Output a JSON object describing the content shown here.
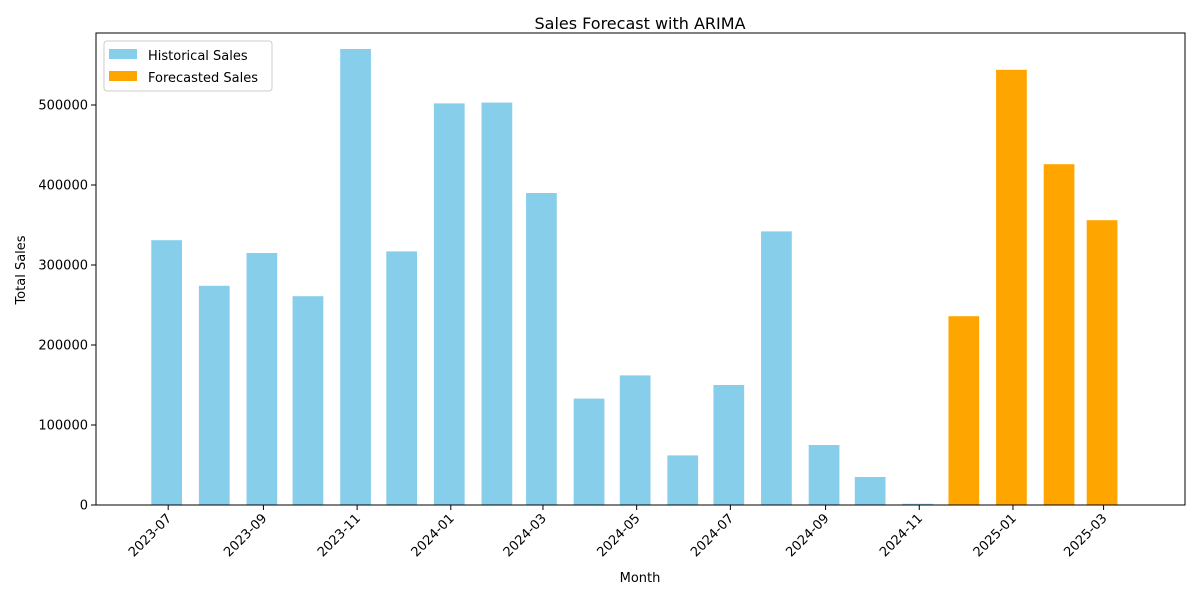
{
  "chart_data": {
    "type": "bar",
    "title": "Sales Forecast with ARIMA",
    "xlabel": "Month",
    "ylabel": "Total Sales",
    "ylim": [
      0,
      590000
    ],
    "yticks": [
      0,
      100000,
      200000,
      300000,
      400000,
      500000
    ],
    "xlim": [
      "2023-05-15",
      "2025-04-23"
    ],
    "xticks": [
      "2023-07",
      "2023-09",
      "2023-11",
      "2024-01",
      "2024-03",
      "2024-05",
      "2024-07",
      "2024-09",
      "2024-11",
      "2025-01",
      "2025-03"
    ],
    "grid": false,
    "legend_position": "top-left",
    "series": [
      {
        "name": "Historical Sales",
        "color": "#87CEEB",
        "dates": [
          "2023-06-30",
          "2023-07-31",
          "2023-08-31",
          "2023-09-30",
          "2023-10-31",
          "2023-11-30",
          "2023-12-31",
          "2024-01-31",
          "2024-02-29",
          "2024-03-31",
          "2024-04-30",
          "2024-05-31",
          "2024-06-30",
          "2024-07-31",
          "2024-08-31",
          "2024-09-30",
          "2024-10-31"
        ],
        "values": [
          331000,
          274000,
          315000,
          261000,
          570000,
          317000,
          502000,
          503000,
          390000,
          133000,
          162000,
          62000,
          150000,
          342000,
          75000,
          35000,
          1500
        ]
      },
      {
        "name": "Forecasted Sales",
        "color": "#FFA500",
        "dates": [
          "2024-11-30",
          "2024-12-31",
          "2025-01-31",
          "2025-02-28"
        ],
        "values": [
          236000,
          544000,
          426000,
          356000
        ]
      }
    ]
  }
}
